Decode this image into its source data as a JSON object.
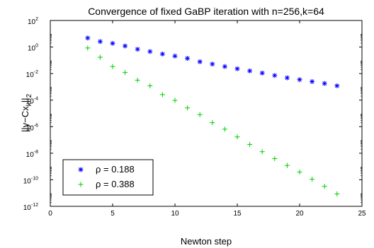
{
  "chart_data": {
    "type": "scatter",
    "title": "Convergence of fixed GaBP iteration with n=256,k=64",
    "xlabel": "Newton step",
    "ylabel": "||y−Cx",
    "ylabel_sub_k": "k",
    "ylabel_sub_2": "2",
    "xlim": [
      0,
      25
    ],
    "ylim_log10": [
      -12,
      2
    ],
    "y_scale": "log",
    "grid": false,
    "legend_position": "lower-left",
    "x_ticks": [
      "0",
      "5",
      "10",
      "15",
      "20",
      "25"
    ],
    "y_tick_base": "10",
    "y_tick_exponents": [
      "2",
      "0",
      "-2",
      "-4",
      "-6",
      "-8",
      "-10",
      "-12"
    ],
    "series": [
      {
        "name": "ρ = 0.188",
        "marker": "*",
        "color": "#0000ff",
        "x": [
          3,
          4,
          5,
          6,
          7,
          8,
          9,
          10,
          11,
          12,
          13,
          14,
          15,
          16,
          17,
          18,
          19,
          20,
          21,
          22,
          23
        ],
        "y": [
          4.8,
          2.6,
          1.9,
          1.2,
          0.68,
          0.46,
          0.3,
          0.21,
          0.14,
          0.078,
          0.052,
          0.034,
          0.023,
          0.016,
          0.011,
          0.0072,
          0.0048,
          0.0035,
          0.0025,
          0.0018,
          0.0012
        ]
      },
      {
        "name": "ρ = 0.388",
        "marker": "+",
        "color": "#00cc00",
        "x": [
          3,
          4,
          5,
          6,
          7,
          8,
          9,
          10,
          11,
          12,
          13,
          14,
          15,
          16,
          17,
          18,
          19,
          20,
          21,
          22,
          23
        ],
        "y": [
          0.85,
          0.17,
          0.034,
          0.012,
          0.0032,
          0.0012,
          0.00026,
          9.6e-05,
          2.6e-05,
          8.1e-06,
          2e-06,
          6.5e-07,
          1.7e-07,
          4.6e-08,
          1.3e-08,
          3.9e-09,
          1.2e-09,
          3.8e-10,
          1.1e-10,
          3.2e-11,
          8.6e-12
        ]
      }
    ]
  }
}
